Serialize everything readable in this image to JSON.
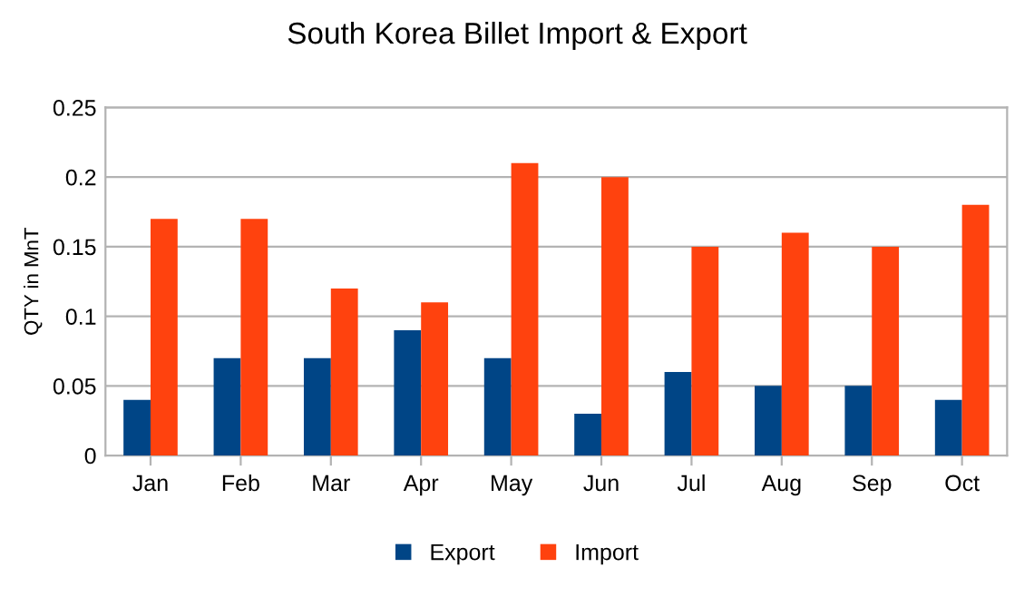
{
  "chart_data": {
    "type": "bar",
    "title": "South Korea Billet Import & Export",
    "ylabel": "QTY in MnT",
    "categories": [
      "Jan",
      "Feb",
      "Mar",
      "Apr",
      "May",
      "Jun",
      "Jul",
      "Aug",
      "Sep",
      "Oct"
    ],
    "series": [
      {
        "name": "Export",
        "color": "#004586",
        "values": [
          0.04,
          0.07,
          0.07,
          0.09,
          0.07,
          0.03,
          0.06,
          0.05,
          0.05,
          0.04
        ]
      },
      {
        "name": "Import",
        "color": "#ff420e",
        "values": [
          0.17,
          0.17,
          0.12,
          0.11,
          0.21,
          0.2,
          0.15,
          0.16,
          0.15,
          0.18
        ]
      }
    ],
    "ylim": [
      0,
      0.25
    ],
    "yticks": [
      0,
      0.05,
      0.1,
      0.15,
      0.2,
      0.25
    ],
    "grid": "y",
    "legend": "bottom"
  }
}
